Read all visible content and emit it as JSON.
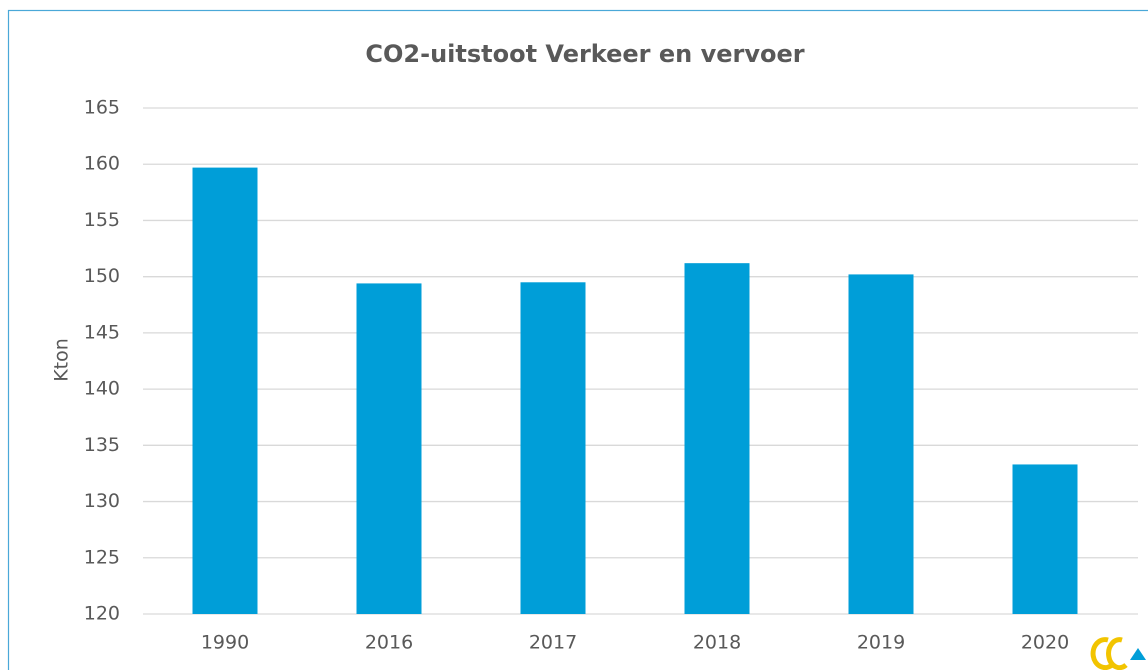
{
  "chart_data": {
    "type": "bar",
    "title": "CO2-uitstoot Verkeer en vervoer",
    "y_label": "Kton",
    "categories": [
      "1990",
      "2016",
      "2017",
      "2018",
      "2019",
      "2020"
    ],
    "values": [
      159.7,
      149.4,
      149.5,
      151.2,
      150.2,
      133.3
    ],
    "color": "#009ed8",
    "ylim": [
      120,
      165
    ],
    "yticks": [
      120,
      125,
      130,
      135,
      140,
      145,
      150,
      155,
      160,
      165
    ],
    "grid": true
  }
}
